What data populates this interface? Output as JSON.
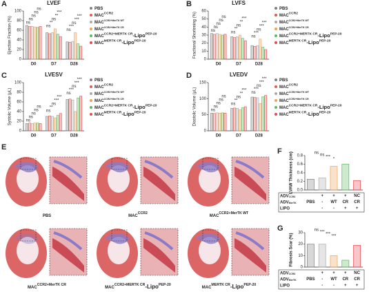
{
  "chart_data": [
    {
      "panel": "A",
      "type": "grouped_bar",
      "title": "LVEF",
      "y_label": "Ejection Fraction (%)",
      "categories": [
        "D0",
        "D7",
        "D28"
      ],
      "ylim": [
        0,
        100
      ],
      "yticks": [
        0,
        20,
        40,
        60,
        80,
        100
      ],
      "series": [
        {
          "name": "PBS",
          "color": "#7f7f7f",
          "values": [
            70,
            55,
            36
          ]
        },
        {
          "name": "MAC",
          "name_sup": "CCR2",
          "color": "#e05a4f",
          "values": [
            68,
            53,
            35
          ]
        },
        {
          "name": "MAC",
          "name_sup": "CCR2+MerTK WT",
          "color": "#a9a9a9",
          "values": [
            68,
            55,
            37
          ]
        },
        {
          "name": "MAC",
          "name_sup": "CCR2+MerTK CR",
          "color": "#f0a050",
          "values": [
            67,
            63,
            55
          ]
        },
        {
          "name": "MAC",
          "name_sup": "CCR2+MERTK CR",
          "name_tail": "-Lipo",
          "name_tail_sup": "PEP-20",
          "color": "#5cb85c",
          "values": [
            66,
            52,
            32
          ]
        },
        {
          "name": "MAC",
          "name_sup": "MERTK CR",
          "name_tail": "-Lipo",
          "name_tail_sup": "PEP-20",
          "color": "#e8474c",
          "values": [
            68,
            47,
            27
          ]
        }
      ],
      "annotations": [
        [
          "ns",
          "ns",
          "ns",
          "ns",
          "ns"
        ],
        [
          "ns",
          "**",
          "ns",
          "**",
          "***"
        ],
        [
          "ns",
          "***",
          "ns",
          "***",
          "***"
        ]
      ]
    },
    {
      "panel": "B",
      "type": "grouped_bar",
      "title": "LVFS",
      "y_label": "Fractional Shortening (%)",
      "categories": [
        "D0",
        "D7",
        "D28"
      ],
      "ylim": [
        0,
        60
      ],
      "yticks": [
        0,
        10,
        20,
        30,
        40,
        50,
        60
      ],
      "series": [
        {
          "name": "PBS",
          "color": "#7f7f7f",
          "values": [
            32,
            28,
            17
          ]
        },
        {
          "name": "MAC",
          "name_sup": "CCR2",
          "color": "#e05a4f",
          "values": [
            31,
            27,
            16
          ]
        },
        {
          "name": "MAC",
          "name_sup": "CCR2+MerTK WT",
          "color": "#a9a9a9",
          "values": [
            32,
            28,
            17
          ]
        },
        {
          "name": "MAC",
          "name_sup": "CCR2+MerTK CR",
          "color": "#f0a050",
          "values": [
            31,
            30,
            25
          ]
        },
        {
          "name": "MAC",
          "name_sup": "CCR2+MERTK CR",
          "name_tail": "-Lipo",
          "name_tail_sup": "PEP-20",
          "color": "#5cb85c",
          "values": [
            30,
            26,
            15
          ]
        },
        {
          "name": "MAC",
          "name_sup": "MERTK CR",
          "name_tail": "-Lipo",
          "name_tail_sup": "PEP-20",
          "color": "#e8474c",
          "values": [
            31,
            23,
            12
          ]
        }
      ],
      "annotations": [
        [
          "ns",
          "ns",
          "ns",
          "ns",
          "ns"
        ],
        [
          "ns",
          "**",
          "ns",
          "**",
          "***"
        ],
        [
          "ns",
          "***",
          "ns",
          "***",
          "***"
        ]
      ]
    },
    {
      "panel": "C",
      "type": "grouped_bar",
      "title": "LVESV",
      "y_label": "Systolic Volume (μL)",
      "categories": [
        "D0",
        "D7",
        "D28"
      ],
      "ylim": [
        0,
        100
      ],
      "yticks": [
        0,
        20,
        40,
        60,
        80,
        100
      ],
      "series": [
        {
          "name": "PBS",
          "color": "#7f7f7f",
          "values": [
            15,
            30,
            65
          ]
        },
        {
          "name": "MAC",
          "name_sup": "CCR2",
          "color": "#e05a4f",
          "values": [
            16,
            31,
            66
          ]
        },
        {
          "name": "MAC",
          "name_sup": "CCR2+MerTK WT",
          "color": "#a9a9a9",
          "values": [
            15,
            30,
            64
          ]
        },
        {
          "name": "MAC",
          "name_sup": "CCR2+MerTK CR",
          "color": "#f0a050",
          "values": [
            16,
            27,
            40
          ]
        },
        {
          "name": "MAC",
          "name_sup": "CCR2+MERTK CR",
          "name_tail": "-Lipo",
          "name_tail_sup": "PEP-20",
          "color": "#5cb85c",
          "values": [
            16,
            32,
            68
          ]
        },
        {
          "name": "MAC",
          "name_sup": "MERTK CR",
          "name_tail": "-Lipo",
          "name_tail_sup": "PEP-20",
          "color": "#e8474c",
          "values": [
            15,
            36,
            72
          ]
        }
      ],
      "annotations": [
        [
          "ns",
          "ns",
          "ns",
          "ns",
          "ns"
        ],
        [
          "ns",
          "**",
          "ns",
          "***",
          "***"
        ],
        [
          "ns",
          "***",
          "ns",
          "***",
          "***"
        ]
      ]
    },
    {
      "panel": "D",
      "type": "grouped_bar",
      "title": "LVEDV",
      "y_label": "Diastolic Volume (μL)",
      "categories": [
        "D0",
        "D7",
        "D28"
      ],
      "ylim": [
        0,
        150
      ],
      "yticks": [
        0,
        50,
        100,
        150
      ],
      "series": [
        {
          "name": "PBS",
          "color": "#7f7f7f",
          "values": [
            55,
            70,
            105
          ]
        },
        {
          "name": "MAC",
          "name_sup": "CCR2",
          "color": "#e05a4f",
          "values": [
            54,
            71,
            104
          ]
        },
        {
          "name": "MAC",
          "name_sup": "CCR2+MerTK WT",
          "color": "#a9a9a9",
          "values": [
            56,
            70,
            103
          ]
        },
        {
          "name": "MAC",
          "name_sup": "CCR2+MerTK CR",
          "color": "#f0a050",
          "values": [
            55,
            66,
            85
          ]
        },
        {
          "name": "MAC",
          "name_sup": "CCR2+MERTK CR",
          "name_tail": "-Lipo",
          "name_tail_sup": "PEP-20",
          "color": "#5cb85c",
          "values": [
            56,
            72,
            106
          ]
        },
        {
          "name": "MAC",
          "name_sup": "MERTK CR",
          "name_tail": "-Lipo",
          "name_tail_sup": "PEP-20",
          "color": "#e8474c",
          "values": [
            55,
            75,
            110
          ]
        }
      ],
      "annotations": [
        [
          "ns",
          "ns",
          "ns",
          "ns",
          "ns"
        ],
        [
          "ns",
          "**",
          "ns",
          "**",
          "***"
        ],
        [
          "ns",
          "***",
          "ns",
          "***",
          "***"
        ]
      ]
    },
    {
      "panel": "F",
      "type": "bar",
      "y_label": "LVAW Thickness (cm)",
      "values": [
        0.25,
        0.28,
        0.55,
        0.6,
        0.22
      ],
      "colors": [
        "#7f7f7f",
        "#a9a9a9",
        "#f0a050",
        "#5cb85c",
        "#e8474c"
      ],
      "ylim": [
        0,
        0.8
      ],
      "yticks": [
        {
          "value": 0,
          "label": "0.0"
        },
        0.2,
        0.4,
        0.6,
        0.8
      ],
      "annotations": [
        "ns",
        "ns",
        "***",
        "*"
      ],
      "table": {
        "row_labels": [
          {
            "name": "ADV",
            "name_sub": "CCR2"
          },
          {
            "name": "ADV",
            "name_sub": "MerTK"
          },
          {
            "name": "LIPO"
          }
        ],
        "rows": [
          [
            null,
            "+",
            "+",
            "+",
            "NC"
          ],
          [
            "PBS",
            "-",
            "WT",
            "CR",
            "CR"
          ],
          [
            null,
            "-",
            "-",
            "+",
            "+"
          ]
        ]
      }
    },
    {
      "panel": "G",
      "type": "bar",
      "y_label": "Fibrosis Scar (%)",
      "values": [
        20,
        20,
        10,
        6,
        19
      ],
      "colors": [
        "#7f7f7f",
        "#a9a9a9",
        "#f0a050",
        "#5cb85c",
        "#e8474c"
      ],
      "ylim": [
        0,
        30
      ],
      "yticks": [
        0,
        10,
        20,
        30
      ],
      "annotations": [
        "ns",
        "***",
        "***",
        "***"
      ],
      "table": {
        "row_labels": [
          {
            "name": "ADV",
            "name_sub": "CCR2"
          },
          {
            "name": "ADV",
            "name_sub": "MerTK"
          },
          {
            "name": "LIPO"
          }
        ],
        "rows": [
          [
            null,
            "+",
            "+",
            "+",
            "NC"
          ],
          [
            "PBS",
            "-",
            "WT",
            "CR",
            "CR"
          ],
          [
            null,
            "-",
            "-",
            "+",
            "+"
          ]
        ]
      }
    }
  ],
  "panel_e": {
    "panel": "E",
    "images": [
      {
        "name": "PBS"
      },
      {
        "name": "MAC",
        "name_sup": "CCR2"
      },
      {
        "name": "MAC",
        "name_sup": "CCR2+MerTK WT"
      },
      {
        "name": "MAC",
        "name_sup": "CCR2+MerTK CR"
      },
      {
        "name": "MAC",
        "name_sup": "CCR2+MERTK CR",
        "name_tail": "-Lipo",
        "name_tail_sup": "PEP-20"
      },
      {
        "name": "MAC",
        "name_sup": "MERTK CR",
        "name_tail": "-Lipo",
        "name_tail_sup": "PEP-20"
      }
    ]
  }
}
